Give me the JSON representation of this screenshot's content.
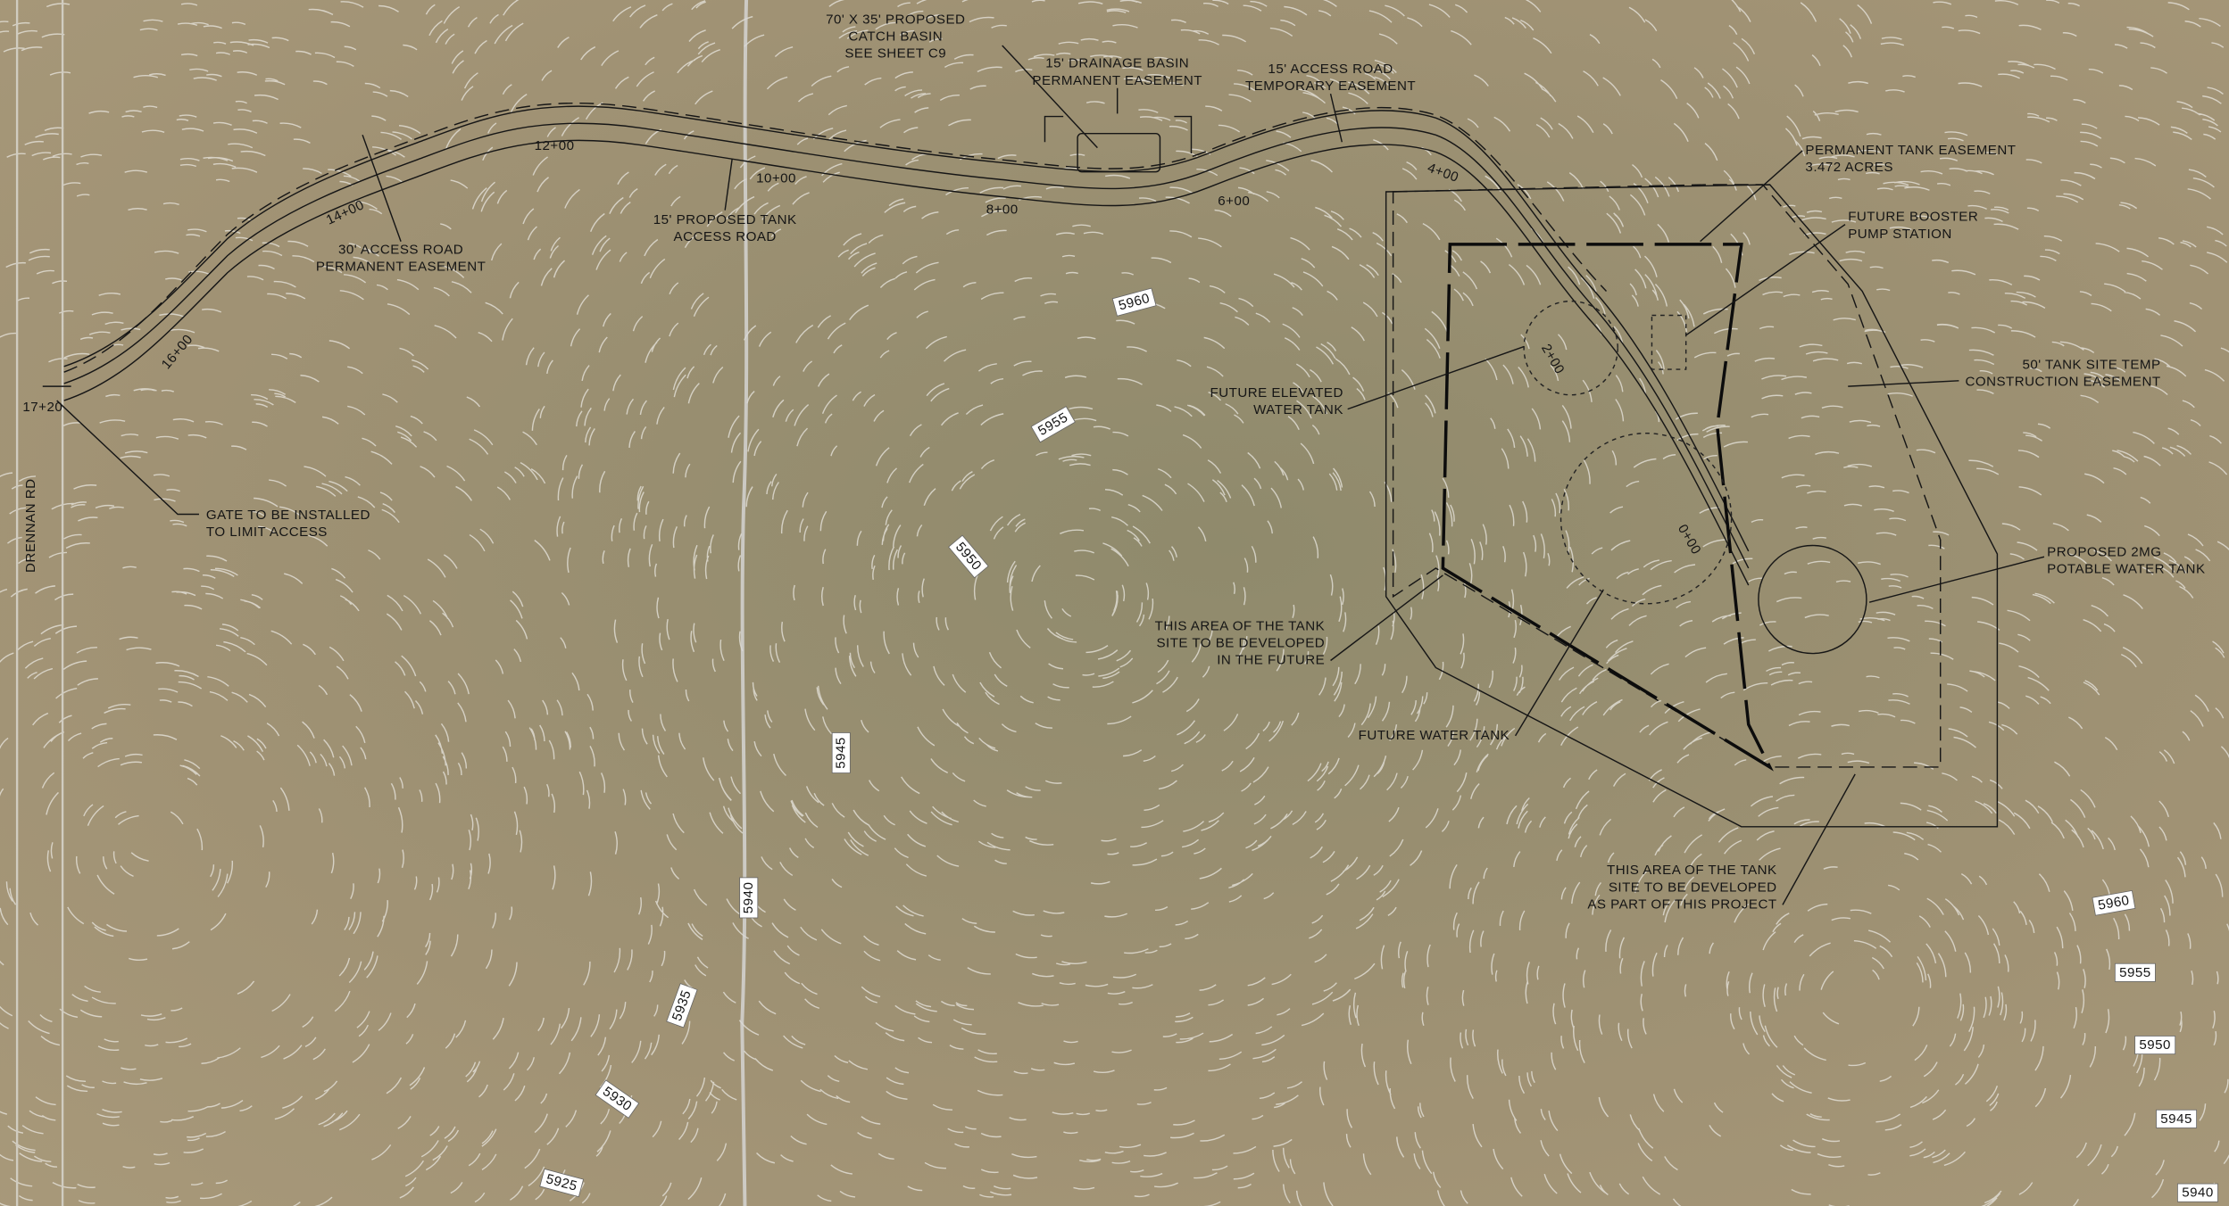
{
  "road_name": "DRENNAN RD",
  "callouts": [
    {
      "lines": [
        "70' X 35' PROPOSED",
        "CATCH BASIN",
        "SEE SHEET C9"
      ]
    },
    {
      "lines": [
        "15' DRAINAGE BASIN",
        "PERMANENT EASEMENT"
      ]
    },
    {
      "lines": [
        "15' ACCESS ROAD",
        "TEMPORARY EASEMENT"
      ]
    },
    {
      "lines": [
        "PERMANENT TANK EASEMENT",
        "3.472 ACRES"
      ]
    },
    {
      "lines": [
        "FUTURE BOOSTER",
        "PUMP STATION"
      ]
    },
    {
      "lines": [
        "50' TANK SITE TEMP",
        "CONSTRUCTION EASEMENT"
      ]
    },
    {
      "lines": [
        "PROPOSED 2MG",
        "POTABLE WATER TANK"
      ]
    },
    {
      "lines": [
        "FUTURE ELEVATED",
        "WATER TANK"
      ]
    },
    {
      "lines": [
        "THIS AREA OF THE TANK",
        "SITE TO BE DEVELOPED",
        "IN THE FUTURE"
      ]
    },
    {
      "lines": [
        "FUTURE WATER TANK"
      ]
    },
    {
      "lines": [
        "THIS AREA OF THE TANK",
        "SITE TO BE DEVELOPED",
        "AS PART OF THIS PROJECT"
      ]
    },
    {
      "lines": [
        "15' PROPOSED TANK",
        "ACCESS ROAD"
      ]
    },
    {
      "lines": [
        "30' ACCESS ROAD",
        "PERMANENT EASEMENT"
      ]
    },
    {
      "lines": [
        "GATE TO BE INSTALLED",
        "TO LIMIT ACCESS"
      ]
    }
  ],
  "stations": [
    "17+20",
    "16+00",
    "14+00",
    "12+00",
    "10+00",
    "8+00",
    "6+00",
    "4+00",
    "2+00",
    "0+00"
  ],
  "contours": [
    5960,
    5955,
    5950,
    5945,
    5940,
    5935,
    5930,
    5925,
    5960,
    5955,
    5950,
    5945,
    5940
  ]
}
